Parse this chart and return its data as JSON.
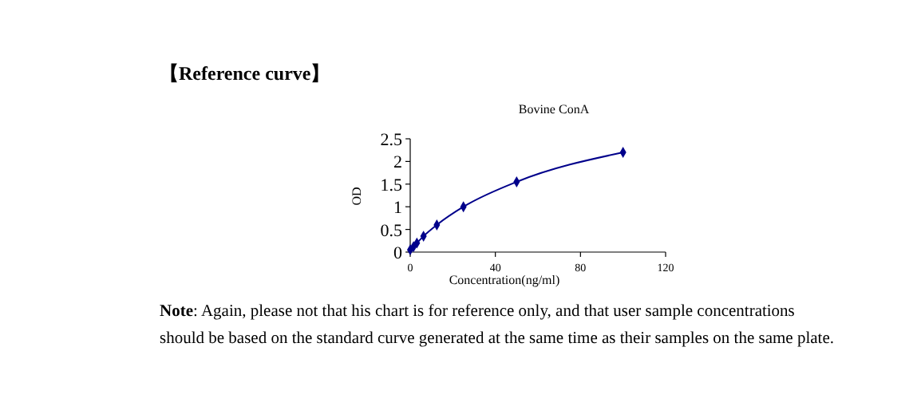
{
  "chart_data": {
    "type": "line",
    "title": "Bovine ConA",
    "xlabel": "Concentration(ng/ml)",
    "ylabel": "OD",
    "annotations": [
      "【Reference curve】",
      "Note: Again, please not that his chart is for reference only, and that user sample concentrations should be based on the standard curve generated at the same time as their samples on the same plate."
    ],
    "x": [
      0,
      1.56,
      3.13,
      6.25,
      12.5,
      25,
      50,
      100
    ],
    "series": [
      {
        "color": "#00008b",
        "values": [
          0.05,
          0.12,
          0.2,
          0.35,
          0.6,
          1.0,
          1.55,
          2.2
        ]
      }
    ],
    "xlim": [
      0,
      120
    ],
    "xticks": [
      0,
      40,
      80,
      120
    ],
    "ylim": [
      0,
      2.5
    ],
    "yticks": [
      0,
      0.5,
      1,
      1.5,
      2,
      2.5
    ],
    "marker": "diamond",
    "line_style": "solid",
    "grid": false
  }
}
